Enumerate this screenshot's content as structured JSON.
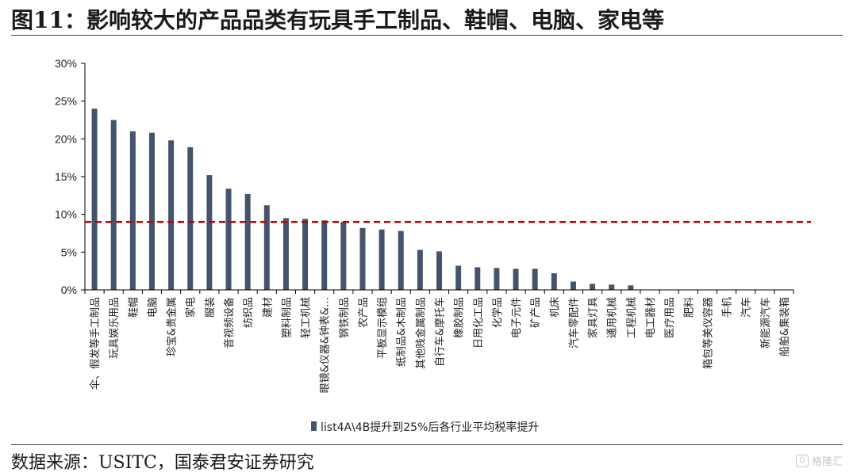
{
  "title": "图11：影响较大的产品品类有玩具手工制品、鞋帽、电脑、家电等",
  "source": "数据来源：USITC，国泰君安证券研究",
  "watermark": "格隆汇",
  "colors": {
    "bar": "#44546a",
    "reference_line": "#c00000",
    "axis": "#000000"
  },
  "chart_data": {
    "type": "bar",
    "ylim": [
      0,
      30
    ],
    "yticks": [
      "0%",
      "5%",
      "10%",
      "15%",
      "20%",
      "25%",
      "30%"
    ],
    "reference_line": 9,
    "legend_position": "bottom-center",
    "grid": false,
    "series": [
      {
        "name": "list4A\\4B提升到25%后各行业平均税率提升",
        "values": [
          24.0,
          22.5,
          21.0,
          20.8,
          19.8,
          18.9,
          15.2,
          13.4,
          12.7,
          11.2,
          9.5,
          9.4,
          9.2,
          9.0,
          8.2,
          8.0,
          7.8,
          5.3,
          5.1,
          3.2,
          3.0,
          2.9,
          2.8,
          2.8,
          2.2,
          1.1,
          0.8,
          0.7,
          0.6,
          0,
          0,
          0,
          0,
          0,
          0,
          0,
          0
        ]
      }
    ],
    "categories": [
      "伞、假发等手工制品",
      "玩具娱乐用品",
      "鞋帽",
      "电脑",
      "珍宝&贵金属",
      "家电",
      "服装",
      "音视频设备",
      "纺织品",
      "建材",
      "塑料制品",
      "轻工机械",
      "眼镜&仪器&钟表&…",
      "钢铁制品",
      "农产品",
      "平板显示模组",
      "纸制品&木制品",
      "其他贱金属制品",
      "自行车&摩托车",
      "橡胶制品",
      "日用化工品",
      "化学品",
      "电子元件",
      "矿产品",
      "机床",
      "汽车零配件",
      "家具灯具",
      "通用机械",
      "工程机械",
      "电工器材",
      "医疗用品",
      "肥料",
      "箱包等美仪容器",
      "手机",
      "汽车",
      "新能源汽车",
      "船舶&集装箱"
    ]
  }
}
